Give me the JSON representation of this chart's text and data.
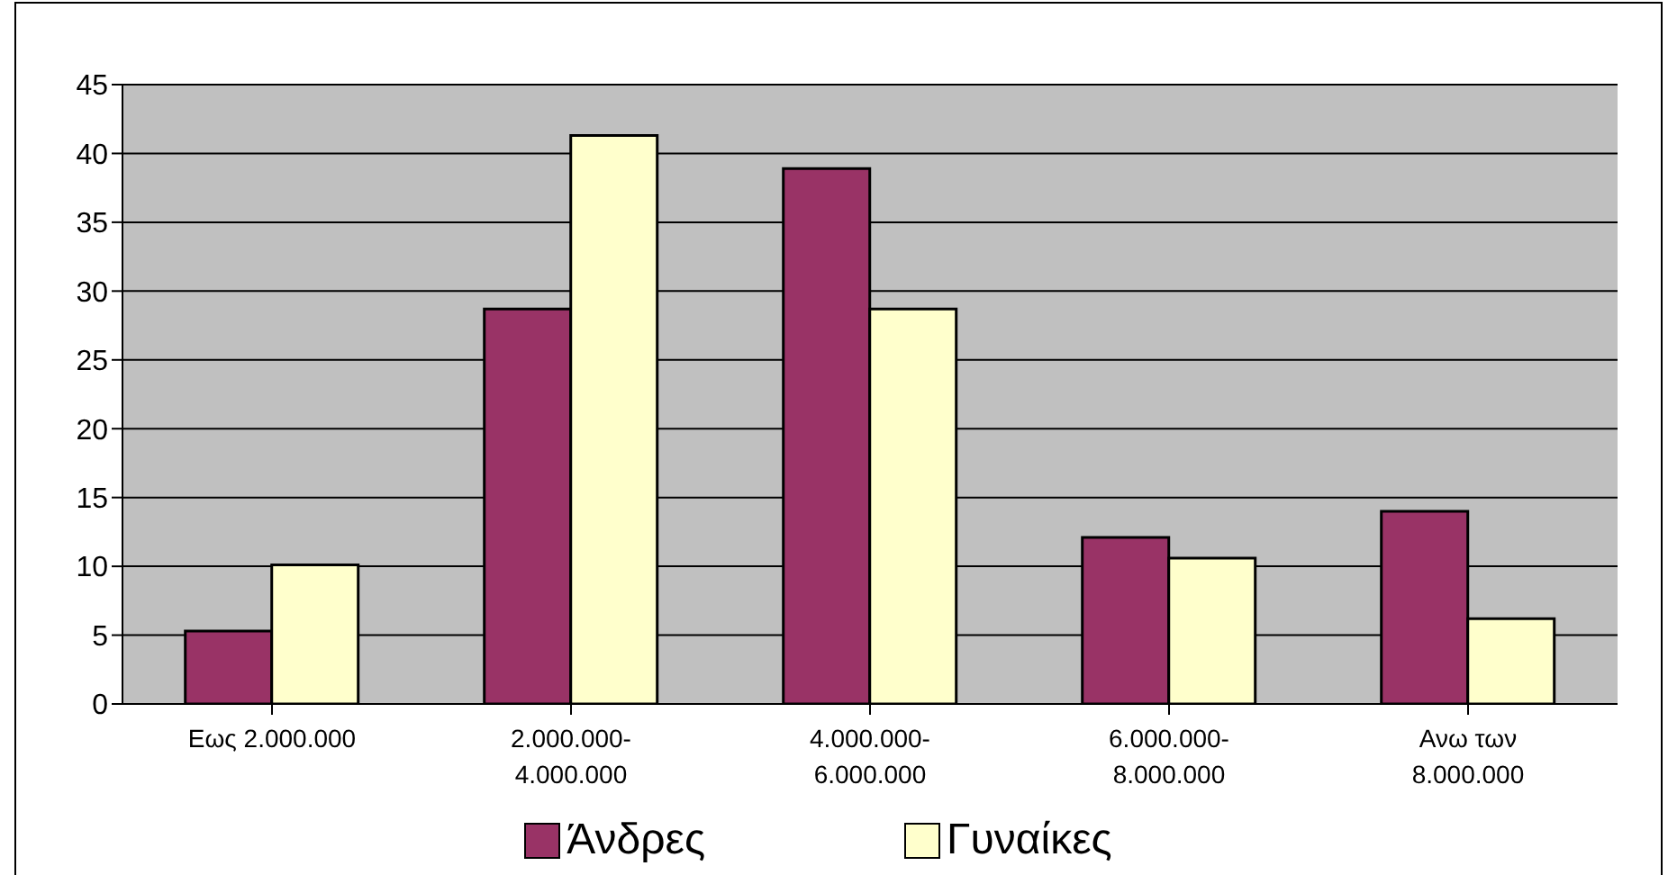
{
  "chart_data": {
    "type": "bar",
    "categories": [
      "Εως 2.000.000",
      "2.000.000-4.000.000",
      "4.000.000-6.000.000",
      "6.000.000-8.000.000",
      "Ανω των 8.000.000"
    ],
    "series": [
      {
        "name": "Άνδρες",
        "color": "#993366",
        "values": [
          5.3,
          28.7,
          38.9,
          12.1,
          14.0
        ]
      },
      {
        "name": "Γυναίκες",
        "color": "#ffffcc",
        "values": [
          10.1,
          41.3,
          28.7,
          10.6,
          6.2
        ]
      }
    ],
    "ylim": [
      0,
      45
    ],
    "yticks": [
      0,
      5,
      10,
      15,
      20,
      25,
      30,
      35,
      40,
      45
    ],
    "grid": "y",
    "legend": "bottom"
  }
}
